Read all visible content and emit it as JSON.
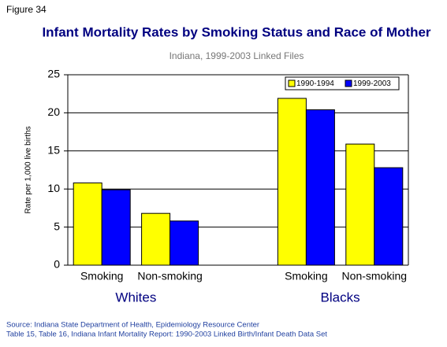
{
  "figure_label": "Figure 34",
  "chart_data": {
    "type": "bar",
    "title": "Infant Mortality Rates by Smoking Status and Race of Mother",
    "subtitle": "Indiana, 1999-2003 Linked Files",
    "y_label": "Rate per 1,000 live births",
    "categories": [
      "Smoking",
      "Non-smoking",
      null,
      "Smoking",
      "Non-smoking"
    ],
    "group_labels": [
      "Whites",
      "Blacks"
    ],
    "series": [
      {
        "name": "1990-1994",
        "color": "#ffff00",
        "values": [
          10.8,
          6.8,
          null,
          21.9,
          15.9
        ]
      },
      {
        "name": "1999-2003",
        "color": "#0000ff",
        "values": [
          9.9,
          5.8,
          null,
          20.4,
          12.8
        ]
      }
    ],
    "ylim": [
      0,
      25
    ],
    "yticks": [
      0,
      5,
      10,
      15,
      20,
      25
    ],
    "grid": true,
    "legend": "upper right"
  },
  "source": [
    "Source: Indiana State Department of Health, Epidemiology Resource Center",
    "Table 15, Table 16, Indiana Infant Mortality Report: 1990-2003 Linked Birth/Infant Death Data Set"
  ]
}
